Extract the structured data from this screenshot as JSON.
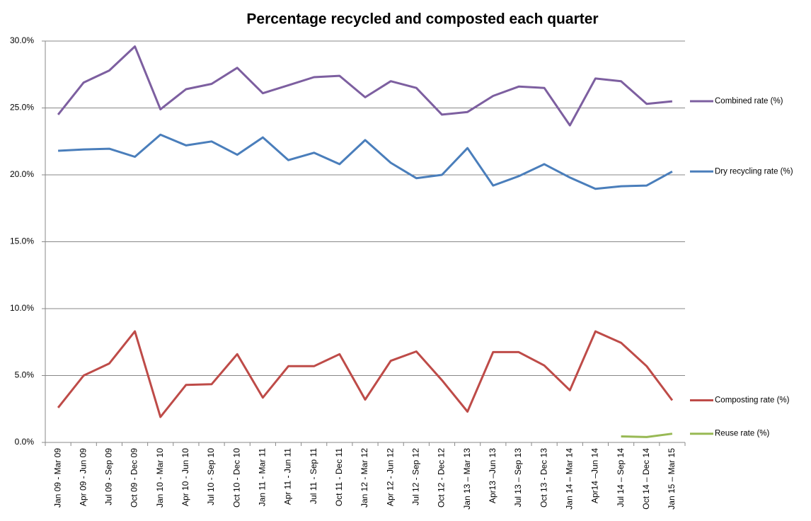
{
  "chart_data": {
    "type": "line",
    "title": "Percentage recycled and composted each quarter",
    "categories": [
      "Jan 09 - Mar 09",
      "Apr 09 - Jun 09",
      "Jul 09 - Sep 09",
      "Oct 09 - Dec 09",
      "Jan 10 - Mar 10",
      "Apr 10 - Jun 10",
      "Jul 10 - Sep 10",
      "Oct 10 - Dec 10",
      "Jan 11 - Mar 11",
      "Apr 11 - Jun 11",
      "Jul 11 - Sep 11",
      "Oct 11 - Dec 11",
      "Jan 12 - Mar 12",
      "Apr 12 - Jun 12",
      "Jul 12 - Sep 12",
      "Oct 12 - Dec 12",
      "Jan 13 – Mar 13",
      "Apr13 –Jun 13",
      "Jul 13 – Sep 13",
      "Oct 13 - Dec 13",
      "Jan 14 – Mar 14",
      "Apr14 –Jun 14",
      "Jul 14 – Sep 14",
      "Oct 14 – Dec 14",
      "Jan 15 – Mar 15"
    ],
    "series": [
      {
        "name": "Combined rate (%)",
        "color": "#7d5fa0",
        "values": [
          24.5,
          26.9,
          27.8,
          29.6,
          24.9,
          26.4,
          26.8,
          28.0,
          26.1,
          26.7,
          27.3,
          27.4,
          25.8,
          27.0,
          26.5,
          24.5,
          24.7,
          25.9,
          26.6,
          26.5,
          23.7,
          27.2,
          27.0,
          25.3,
          25.5
        ]
      },
      {
        "name": "Dry recycling rate (%)",
        "color": "#4a7ebb",
        "values": [
          21.8,
          21.9,
          21.95,
          21.35,
          23.0,
          22.2,
          22.5,
          21.5,
          22.8,
          21.1,
          21.65,
          20.8,
          22.6,
          20.9,
          19.75,
          20.0,
          22.0,
          19.2,
          19.9,
          20.8,
          19.8,
          18.95,
          19.15,
          19.2,
          20.25
        ]
      },
      {
        "name": "Composting rate (%)",
        "color": "#be4b48",
        "values": [
          2.6,
          5.0,
          5.9,
          8.3,
          1.9,
          4.3,
          4.35,
          6.6,
          3.35,
          5.7,
          5.7,
          6.6,
          3.2,
          6.1,
          6.8,
          4.65,
          2.3,
          6.75,
          6.75,
          5.75,
          3.9,
          8.3,
          7.45,
          5.7,
          3.15
        ]
      },
      {
        "name": "Reuse rate (%)",
        "color": "#98b954",
        "values": [
          null,
          null,
          null,
          null,
          null,
          null,
          null,
          null,
          null,
          null,
          null,
          null,
          null,
          null,
          null,
          null,
          null,
          null,
          null,
          null,
          null,
          null,
          0.45,
          0.4,
          0.65
        ]
      }
    ],
    "ylim": [
      0,
      30
    ],
    "yticks": [
      {
        "value": 0,
        "label": "0.0%"
      },
      {
        "value": 5,
        "label": "5.0%"
      },
      {
        "value": 10,
        "label": "10.0%"
      },
      {
        "value": 15,
        "label": "15.0%"
      },
      {
        "value": 20,
        "label": "20.0%"
      },
      {
        "value": 25,
        "label": "25.0%"
      },
      {
        "value": 30,
        "label": "30.0%"
      }
    ],
    "grid": true
  }
}
